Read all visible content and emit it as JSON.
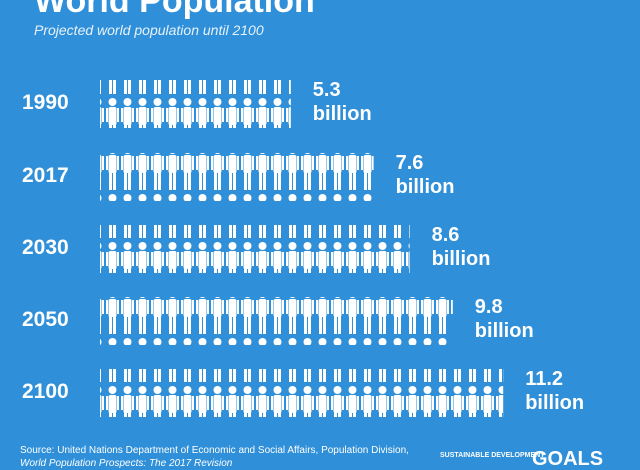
{
  "chart_data": {
    "type": "pictogram",
    "title": "World Population",
    "subtitle": "Projected world population until 2100",
    "categories": [
      "1990",
      "2017",
      "2030",
      "2050",
      "2100"
    ],
    "values": [
      5.3,
      7.6,
      8.6,
      9.8,
      11.2
    ],
    "value_labels": [
      "5.3 billion",
      "7.6 billion",
      "8.6 billion",
      "9.8 billion",
      "11.2 billion"
    ],
    "color": "#ffffff",
    "source": "Source: United Nations Department of Economic and Social Affairs, Population Division,",
    "source_title": "World Population Prospects: The 2017 Revision",
    "logo_text": "SUSTAINABLE DEVELOPMENT",
    "logo_word": "GOALS"
  }
}
